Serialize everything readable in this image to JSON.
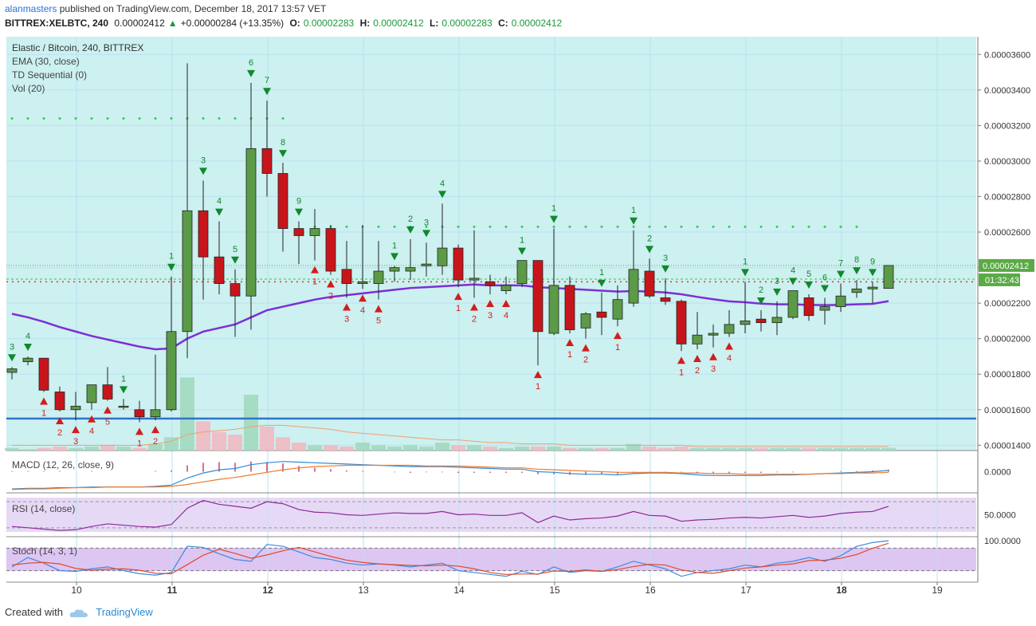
{
  "header": {
    "user": "alanmasters",
    "published": "published on TradingView.com, December 18, 2017 13:57 VET",
    "symbol": "BITTREX:XELBTC, 240",
    "price": "0.00002412",
    "change": "+0.00000284 (+13.35%)",
    "o_label": "O:",
    "o": "0.00002283",
    "h_label": "H:",
    "h": "0.00002412",
    "l_label": "L:",
    "l": "0.00002283",
    "c_label": "C:",
    "c": "0.00002412"
  },
  "legend": {
    "title": "Elastic / Bitcoin, 240, BITTREX",
    "ema": "EMA (30, close)",
    "td": "TD Sequential (0)",
    "vol": "Vol (20)",
    "macd": "MACD (12, 26, close, 9)",
    "rsi": "RSI (14, close)",
    "stoch": "Stoch (14, 3, 1)"
  },
  "footer": {
    "created": "Created with",
    "brand": "TradingView"
  },
  "colors": {
    "bg_main": "#cdf0f0",
    "up": "#5b9a46",
    "down": "#c8151b",
    "ema": "#7b2fd6",
    "support": "#2e74c9",
    "td_buy": "#0d8a2c",
    "td_sell": "#d31c1c",
    "macd": "#2f8cd8",
    "signal": "#ef7b2b",
    "rsi": "#8e2a95",
    "stoch_k": "#3d8ae0",
    "stoch_d": "#e04a2a"
  },
  "chart_data": {
    "type": "candlestick",
    "x_tick_labels": [
      "10",
      "11",
      "12",
      "13",
      "14",
      "15",
      "16",
      "17",
      "18",
      "19"
    ],
    "y_tick_labels": [
      "0.00003600",
      "0.00003400",
      "0.00003200",
      "0.00003000",
      "0.00002800",
      "0.00002600",
      "0.00002400",
      "0.00002200",
      "0.00002000",
      "0.00001800",
      "0.00001600",
      "0.00001400"
    ],
    "y_range": [
      1.37e-05,
      3.7e-05
    ],
    "last_price_label": "0.00002412",
    "countdown_label": "01:32:43",
    "macd_label": "0.0000",
    "rsi_label": "50.0000",
    "stoch_label": "100.0000",
    "candles": [
      {
        "o": 1.81e-05,
        "h": 1.84e-05,
        "l": 1.77e-05,
        "c": 1.83e-05
      },
      {
        "o": 1.87e-05,
        "h": 1.9e-05,
        "l": 1.85e-05,
        "c": 1.89e-05
      },
      {
        "o": 1.89e-05,
        "h": 1.89e-05,
        "l": 1.7e-05,
        "c": 1.71e-05
      },
      {
        "o": 1.7e-05,
        "h": 1.73e-05,
        "l": 1.59e-05,
        "c": 1.6e-05
      },
      {
        "o": 1.6e-05,
        "h": 1.7e-05,
        "l": 1.54e-05,
        "c": 1.62e-05
      },
      {
        "o": 1.64e-05,
        "h": 1.73e-05,
        "l": 1.6e-05,
        "c": 1.74e-05
      },
      {
        "o": 1.74e-05,
        "h": 1.84e-05,
        "l": 1.65e-05,
        "c": 1.66e-05
      },
      {
        "o": 1.62e-05,
        "h": 1.66e-05,
        "l": 1.6e-05,
        "c": 1.62e-05
      },
      {
        "o": 1.6e-05,
        "h": 1.65e-05,
        "l": 1.53e-05,
        "c": 1.56e-05
      },
      {
        "o": 1.56e-05,
        "h": 1.91e-05,
        "l": 1.54e-05,
        "c": 1.6e-05
      },
      {
        "o": 1.6e-05,
        "h": 2.35e-05,
        "l": 1.59e-05,
        "c": 2.04e-05
      },
      {
        "o": 2.04e-05,
        "h": 3.55e-05,
        "l": 1.89e-05,
        "c": 2.72e-05
      },
      {
        "o": 2.72e-05,
        "h": 2.89e-05,
        "l": 2.22e-05,
        "c": 2.46e-05
      },
      {
        "o": 2.46e-05,
        "h": 2.66e-05,
        "l": 2.25e-05,
        "c": 2.31e-05
      },
      {
        "o": 2.31e-05,
        "h": 2.39e-05,
        "l": 2.01e-05,
        "c": 2.24e-05
      },
      {
        "o": 2.24e-05,
        "h": 3.44e-05,
        "l": 2.05e-05,
        "c": 3.07e-05
      },
      {
        "o": 3.07e-05,
        "h": 3.34e-05,
        "l": 2.8e-05,
        "c": 2.93e-05
      },
      {
        "o": 2.93e-05,
        "h": 2.99e-05,
        "l": 2.49e-05,
        "c": 2.62e-05
      },
      {
        "o": 2.62e-05,
        "h": 2.66e-05,
        "l": 2.42e-05,
        "c": 2.58e-05
      },
      {
        "o": 2.58e-05,
        "h": 2.73e-05,
        "l": 2.44e-05,
        "c": 2.62e-05
      },
      {
        "o": 2.62e-05,
        "h": 2.64e-05,
        "l": 2.36e-05,
        "c": 2.38e-05
      },
      {
        "o": 2.39e-05,
        "h": 2.55e-05,
        "l": 2.23e-05,
        "c": 2.31e-05
      },
      {
        "o": 2.31e-05,
        "h": 2.64e-05,
        "l": 2.28e-05,
        "c": 2.32e-05
      },
      {
        "o": 2.31e-05,
        "h": 2.55e-05,
        "l": 2.22e-05,
        "c": 2.38e-05
      },
      {
        "o": 2.38e-05,
        "h": 2.41e-05,
        "l": 2.32e-05,
        "c": 2.4e-05
      },
      {
        "o": 2.38e-05,
        "h": 2.56e-05,
        "l": 2.33e-05,
        "c": 2.4e-05
      },
      {
        "o": 2.41e-05,
        "h": 2.54e-05,
        "l": 2.35e-05,
        "c": 2.42e-05
      },
      {
        "o": 2.41e-05,
        "h": 2.76e-05,
        "l": 2.36e-05,
        "c": 2.51e-05
      },
      {
        "o": 2.51e-05,
        "h": 2.53e-05,
        "l": 2.29e-05,
        "c": 2.33e-05
      },
      {
        "o": 2.33e-05,
        "h": 2.61e-05,
        "l": 2.23e-05,
        "c": 2.34e-05
      },
      {
        "o": 2.32e-05,
        "h": 2.36e-05,
        "l": 2.25e-05,
        "c": 2.3e-05
      },
      {
        "o": 2.27e-05,
        "h": 2.35e-05,
        "l": 2.25e-05,
        "c": 2.3e-05
      },
      {
        "o": 2.31e-05,
        "h": 2.44e-05,
        "l": 2.29e-05,
        "c": 2.44e-05
      },
      {
        "o": 2.44e-05,
        "h": 2.44e-05,
        "l": 1.85e-05,
        "c": 2.04e-05
      },
      {
        "o": 2.03e-05,
        "h": 2.62e-05,
        "l": 2.02e-05,
        "c": 2.3e-05
      },
      {
        "o": 2.3e-05,
        "h": 2.35e-05,
        "l": 2.03e-05,
        "c": 2.05e-05
      },
      {
        "o": 2.06e-05,
        "h": 2.15e-05,
        "l": 2e-05,
        "c": 2.14e-05
      },
      {
        "o": 2.15e-05,
        "h": 2.26e-05,
        "l": 2.02e-05,
        "c": 2.12e-05
      },
      {
        "o": 2.11e-05,
        "h": 2.3e-05,
        "l": 2.07e-05,
        "c": 2.22e-05
      },
      {
        "o": 2.2e-05,
        "h": 2.61e-05,
        "l": 2.18e-05,
        "c": 2.39e-05
      },
      {
        "o": 2.38e-05,
        "h": 2.45e-05,
        "l": 2.23e-05,
        "c": 2.24e-05
      },
      {
        "o": 2.23e-05,
        "h": 2.34e-05,
        "l": 2.19e-05,
        "c": 2.21e-05
      },
      {
        "o": 2.21e-05,
        "h": 2.22e-05,
        "l": 1.93e-05,
        "c": 1.97e-05
      },
      {
        "o": 1.97e-05,
        "h": 2.15e-05,
        "l": 1.94e-05,
        "c": 2.02e-05
      },
      {
        "o": 2.02e-05,
        "h": 2.08e-05,
        "l": 1.95e-05,
        "c": 2.03e-05
      },
      {
        "o": 2.03e-05,
        "h": 2.16e-05,
        "l": 2.01e-05,
        "c": 2.08e-05
      },
      {
        "o": 2.08e-05,
        "h": 2.32e-05,
        "l": 2.03e-05,
        "c": 2.1e-05
      },
      {
        "o": 2.11e-05,
        "h": 2.16e-05,
        "l": 2.04e-05,
        "c": 2.09e-05
      },
      {
        "o": 2.09e-05,
        "h": 2.21e-05,
        "l": 2.02e-05,
        "c": 2.12e-05
      },
      {
        "o": 2.12e-05,
        "h": 2.27e-05,
        "l": 2.11e-05,
        "c": 2.27e-05
      },
      {
        "o": 2.23e-05,
        "h": 2.25e-05,
        "l": 2.1e-05,
        "c": 2.13e-05
      },
      {
        "o": 2.16e-05,
        "h": 2.23e-05,
        "l": 2.08e-05,
        "c": 2.18e-05
      },
      {
        "o": 2.18e-05,
        "h": 2.31e-05,
        "l": 2.15e-05,
        "c": 2.24e-05
      },
      {
        "o": 2.26e-05,
        "h": 2.33e-05,
        "l": 2.23e-05,
        "c": 2.28e-05
      },
      {
        "o": 2.28e-05,
        "h": 2.32e-05,
        "l": 2.2e-05,
        "c": 2.29e-05
      },
      {
        "o": 2.283e-05,
        "h": 2.412e-05,
        "l": 2.283e-05,
        "c": 2.412e-05
      }
    ],
    "ema": [
      2.14e-05,
      2.12e-05,
      2.095e-05,
      2.065e-05,
      2.04e-05,
      2.015e-05,
      1.995e-05,
      1.975e-05,
      1.955e-05,
      1.94e-05,
      1.945e-05,
      2e-05,
      2.04e-05,
      2.06e-05,
      2.08e-05,
      2.12e-05,
      2.16e-05,
      2.18e-05,
      2.2e-05,
      2.22e-05,
      2.235e-05,
      2.245e-05,
      2.255e-05,
      2.265e-05,
      2.275e-05,
      2.285e-05,
      2.29e-05,
      2.295e-05,
      2.3e-05,
      2.305e-05,
      2.3e-05,
      2.3e-05,
      2.3e-05,
      2.29e-05,
      2.285e-05,
      2.28e-05,
      2.275e-05,
      2.27e-05,
      2.265e-05,
      2.268e-05,
      2.265e-05,
      2.26e-05,
      2.25e-05,
      2.235e-05,
      2.222e-05,
      2.21e-05,
      2.205e-05,
      2.197e-05,
      2.193e-05,
      2.193e-05,
      2.19e-05,
      2.189e-05,
      2.19e-05,
      2.193e-05,
      2.196e-05,
      2.211e-05
    ],
    "support_level": 1.55e-05,
    "resistance_dots_1": 3.24e-05,
    "resistance_dots_2": 2.63e-05,
    "dotted_red_level": 2.32e-05,
    "dotted_green_level": 2.335e-05,
    "td_buy_setups": [
      {
        "i": 0,
        "label": "3"
      },
      {
        "i": 1,
        "label": "4"
      },
      {
        "i": 7,
        "label": "1"
      },
      {
        "i": 10,
        "label": "1"
      },
      {
        "i": 12,
        "label": "3"
      },
      {
        "i": 13,
        "label": "4"
      },
      {
        "i": 14,
        "label": "5"
      },
      {
        "i": 15,
        "label": "6"
      },
      {
        "i": 16,
        "label": "7"
      },
      {
        "i": 17,
        "label": "8"
      },
      {
        "i": 18,
        "label": "9"
      },
      {
        "i": 24,
        "label": "1"
      },
      {
        "i": 25,
        "label": "2"
      },
      {
        "i": 26,
        "label": "3"
      },
      {
        "i": 27,
        "label": "4"
      },
      {
        "i": 32,
        "label": "1"
      },
      {
        "i": 34,
        "label": "1"
      },
      {
        "i": 37,
        "label": "1"
      },
      {
        "i": 39,
        "label": "1"
      },
      {
        "i": 40,
        "label": "2"
      },
      {
        "i": 41,
        "label": "3"
      },
      {
        "i": 46,
        "label": "1"
      },
      {
        "i": 47,
        "label": "2"
      },
      {
        "i": 48,
        "label": "3"
      },
      {
        "i": 49,
        "label": "4"
      },
      {
        "i": 50,
        "label": "5"
      },
      {
        "i": 51,
        "label": "6"
      },
      {
        "i": 52,
        "label": "7"
      },
      {
        "i": 53,
        "label": "8"
      },
      {
        "i": 54,
        "label": "9"
      }
    ],
    "td_sell_setups": [
      {
        "i": 2,
        "label": "1"
      },
      {
        "i": 3,
        "label": "2"
      },
      {
        "i": 4,
        "label": "3"
      },
      {
        "i": 5,
        "label": "4"
      },
      {
        "i": 6,
        "label": "5"
      },
      {
        "i": 8,
        "label": "1"
      },
      {
        "i": 9,
        "label": "2"
      },
      {
        "i": 19,
        "label": "1"
      },
      {
        "i": 20,
        "label": "2"
      },
      {
        "i": 21,
        "label": "3"
      },
      {
        "i": 22,
        "label": "4"
      },
      {
        "i": 23,
        "label": "5"
      },
      {
        "i": 28,
        "label": "1"
      },
      {
        "i": 29,
        "label": "2"
      },
      {
        "i": 30,
        "label": "3"
      },
      {
        "i": 31,
        "label": "4"
      },
      {
        "i": 33,
        "label": "1"
      },
      {
        "i": 35,
        "label": "1"
      },
      {
        "i": 36,
        "label": "2"
      },
      {
        "i": 38,
        "label": "1"
      },
      {
        "i": 42,
        "label": "1"
      },
      {
        "i": 43,
        "label": "2"
      },
      {
        "i": 44,
        "label": "3"
      },
      {
        "i": 45,
        "label": "4"
      }
    ],
    "volume": [
      2,
      1,
      2,
      3,
      2,
      3,
      4,
      3,
      2,
      5,
      10,
      55,
      22,
      14,
      12,
      42,
      18,
      10,
      6,
      4,
      4,
      3,
      6,
      4,
      3,
      4,
      3,
      6,
      4,
      4,
      3,
      2,
      3,
      3,
      3,
      2,
      2,
      2,
      2,
      5,
      3,
      2,
      3,
      2,
      2,
      2,
      2,
      2,
      2,
      2,
      2,
      2,
      2,
      2,
      2,
      2
    ],
    "volume_ma": [
      4,
      4,
      4,
      4,
      4,
      4,
      4,
      4,
      4,
      5,
      7,
      12,
      14,
      15,
      16,
      18,
      19,
      19,
      18,
      17,
      16,
      14,
      13,
      12,
      11,
      10,
      9,
      8,
      8,
      7,
      6,
      6,
      5,
      5,
      5,
      4,
      4,
      4,
      4,
      4,
      4,
      4,
      4,
      3,
      3,
      3,
      3,
      3,
      3,
      3,
      3,
      3,
      3,
      3,
      3,
      3
    ],
    "macd": [
      -27,
      -26,
      -26,
      -25,
      -25,
      -24,
      -24,
      -24,
      -24,
      -23,
      -21,
      -10,
      -2,
      3,
      5,
      11,
      14,
      16,
      15,
      14,
      13,
      12,
      11,
      10,
      9,
      8,
      8,
      8,
      7,
      6,
      5,
      4,
      4,
      0,
      -1,
      -3,
      -4,
      -4,
      -5,
      -3,
      -2,
      -2,
      -3,
      -5,
      -6,
      -6,
      -6,
      -6,
      -5,
      -5,
      -4,
      -3,
      -2,
      -1,
      0,
      2
    ],
    "macd_signal": [
      -28,
      -27,
      -27,
      -26,
      -25,
      -25,
      -24,
      -24,
      -24,
      -24,
      -23,
      -20,
      -16,
      -12,
      -9,
      -5,
      -1,
      3,
      6,
      8,
      9,
      10,
      10,
      10,
      10,
      10,
      9,
      9,
      9,
      8,
      7,
      6,
      6,
      4,
      3,
      2,
      1,
      0,
      -1,
      -1,
      -1,
      -1,
      -2,
      -2,
      -3,
      -3,
      -4,
      -4,
      -4,
      -4,
      -4,
      -3,
      -3,
      -2,
      -2,
      -1
    ],
    "macd_hist": [
      1,
      1,
      1,
      1,
      0,
      1,
      0,
      0,
      0,
      1,
      2,
      10,
      14,
      15,
      14,
      16,
      15,
      13,
      9,
      6,
      4,
      2,
      1,
      0,
      -1,
      -2,
      -1,
      -1,
      -2,
      -2,
      -2,
      -2,
      -2,
      -4,
      -4,
      -5,
      -5,
      -4,
      -4,
      -2,
      -1,
      -1,
      -1,
      -3,
      -3,
      -3,
      -2,
      -2,
      -1,
      -1,
      0,
      0,
      1,
      1,
      2,
      3
    ],
    "rsi": [
      32,
      30,
      28,
      26,
      27,
      32,
      36,
      34,
      32,
      31,
      35,
      60,
      72,
      66,
      63,
      60,
      70,
      67,
      58,
      54,
      53,
      50,
      49,
      51,
      53,
      52,
      52,
      55,
      50,
      51,
      49,
      49,
      53,
      38,
      48,
      42,
      44,
      45,
      48,
      55,
      49,
      48,
      40,
      42,
      43,
      45,
      46,
      45,
      47,
      49,
      46,
      48,
      52,
      54,
      55,
      63
    ],
    "stoch_k": [
      30,
      55,
      40,
      20,
      18,
      25,
      30,
      20,
      12,
      8,
      15,
      85,
      82,
      65,
      50,
      45,
      90,
      85,
      70,
      55,
      50,
      40,
      35,
      38,
      35,
      30,
      35,
      40,
      20,
      15,
      10,
      5,
      18,
      10,
      30,
      15,
      20,
      18,
      30,
      45,
      35,
      25,
      5,
      15,
      20,
      25,
      35,
      30,
      40,
      45,
      55,
      45,
      60,
      85,
      95,
      100
    ],
    "stoch_d": [
      35,
      40,
      42,
      38,
      26,
      21,
      24,
      25,
      21,
      13,
      12,
      36,
      61,
      77,
      66,
      53,
      62,
      73,
      82,
      70,
      58,
      48,
      42,
      38,
      36,
      34,
      33,
      35,
      32,
      25,
      15,
      10,
      11,
      11,
      19,
      18,
      22,
      18,
      23,
      31,
      37,
      35,
      22,
      15,
      13,
      20,
      27,
      30,
      35,
      38,
      47,
      48,
      53,
      63,
      80,
      93
    ]
  }
}
